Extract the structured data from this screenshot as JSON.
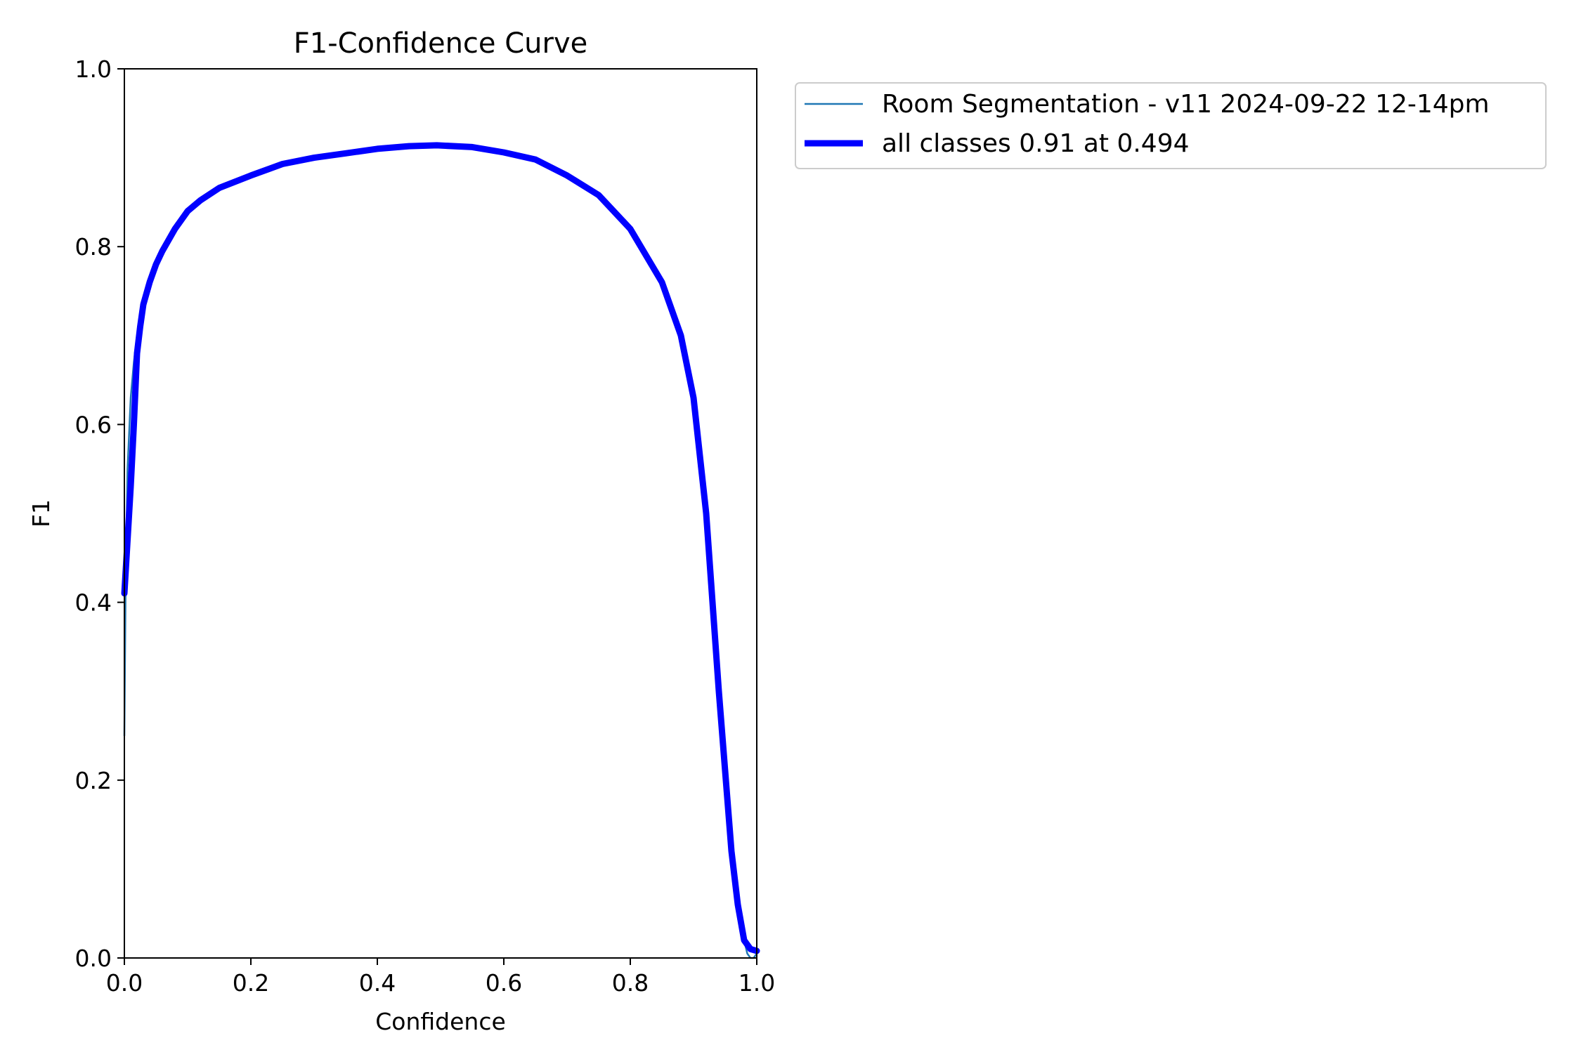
{
  "chart_data": {
    "type": "line",
    "title": "F1-Confidence Curve",
    "xlabel": "Confidence",
    "ylabel": "F1",
    "xlim": [
      0.0,
      1.0
    ],
    "ylim": [
      0.0,
      1.0
    ],
    "xticks": [
      "0.0",
      "0.2",
      "0.4",
      "0.6",
      "0.8",
      "1.0"
    ],
    "yticks": [
      "0.0",
      "0.2",
      "0.4",
      "0.6",
      "0.8",
      "1.0"
    ],
    "grid": false,
    "legend_position": "outside-top-right",
    "series": [
      {
        "name": "Room Segmentation - v11 2024-09-22 12-14pm",
        "color": "#1f77b4",
        "style": "thin",
        "x": [
          0.0,
          0.002,
          0.005,
          0.01,
          0.015,
          0.02,
          0.025,
          0.03,
          0.04,
          0.05,
          0.06,
          0.08,
          0.1,
          0.12,
          0.15,
          0.2,
          0.25,
          0.3,
          0.35,
          0.4,
          0.45,
          0.494,
          0.55,
          0.6,
          0.65,
          0.7,
          0.75,
          0.8,
          0.85,
          0.88,
          0.9,
          0.92,
          0.94,
          0.96,
          0.97,
          0.98,
          0.985,
          0.99,
          0.995,
          1.0
        ],
        "y": [
          0.25,
          0.42,
          0.55,
          0.63,
          0.67,
          0.7,
          0.72,
          0.735,
          0.76,
          0.78,
          0.795,
          0.82,
          0.84,
          0.852,
          0.866,
          0.88,
          0.893,
          0.9,
          0.905,
          0.91,
          0.913,
          0.914,
          0.912,
          0.906,
          0.898,
          0.88,
          0.858,
          0.82,
          0.76,
          0.7,
          0.63,
          0.5,
          0.3,
          0.12,
          0.06,
          0.02,
          0.005,
          0.0,
          0.0,
          0.005
        ]
      },
      {
        "name": "all classes 0.91 at 0.494",
        "color": "#0000ff",
        "style": "thick",
        "x": [
          0.0,
          0.005,
          0.01,
          0.015,
          0.02,
          0.025,
          0.03,
          0.04,
          0.05,
          0.06,
          0.08,
          0.1,
          0.12,
          0.15,
          0.2,
          0.25,
          0.3,
          0.35,
          0.4,
          0.45,
          0.494,
          0.55,
          0.6,
          0.65,
          0.7,
          0.75,
          0.8,
          0.85,
          0.88,
          0.9,
          0.92,
          0.94,
          0.96,
          0.97,
          0.98,
          0.99,
          1.0
        ],
        "y": [
          0.41,
          0.47,
          0.53,
          0.6,
          0.68,
          0.71,
          0.735,
          0.76,
          0.78,
          0.795,
          0.82,
          0.84,
          0.852,
          0.866,
          0.88,
          0.893,
          0.9,
          0.905,
          0.91,
          0.913,
          0.914,
          0.912,
          0.906,
          0.898,
          0.88,
          0.858,
          0.82,
          0.76,
          0.7,
          0.63,
          0.5,
          0.3,
          0.12,
          0.06,
          0.02,
          0.01,
          0.008
        ]
      }
    ]
  }
}
